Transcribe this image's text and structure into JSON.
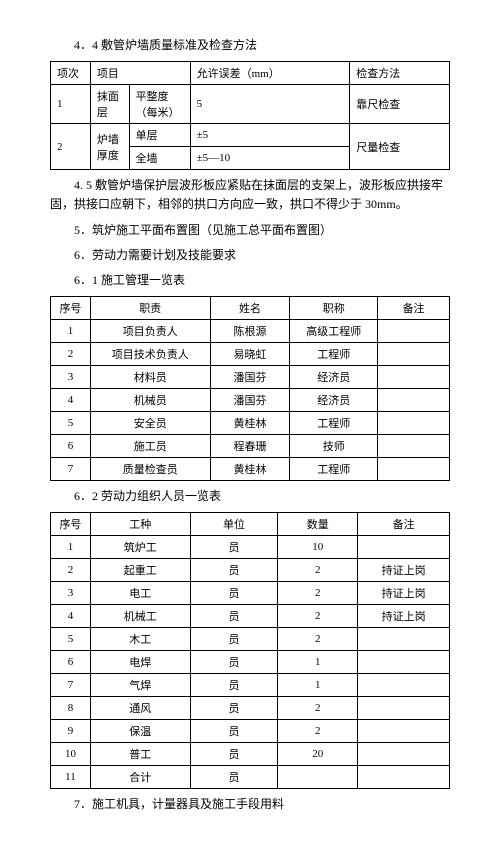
{
  "section": {
    "h44": "4．4 敷管炉墙质量标准及检查方法",
    "table44": {
      "headers": [
        "项次",
        "项目",
        "",
        "允许误差（mm）",
        "检查方法"
      ],
      "rows": [
        [
          "1",
          "抹面层",
          "平整度（每米）",
          "5",
          "靠尺检查"
        ],
        [
          "2",
          "炉墙厚度",
          "单层",
          "±5",
          "尺量检查"
        ],
        [
          "",
          "",
          "全墙",
          "±5—10",
          ""
        ]
      ]
    },
    "p45": "4. 5 敷管炉墙保护层波形板应紧贴在抹面层的支架上，波形板应拱接牢固，拱接口应朝下，相邻的拱口方向应一致，拱口不得少于 30mm。",
    "h5": "5．筑炉施工平面布置图（见施工总平面布置图）",
    "h6": "6．劳动力需要计划及技能要求",
    "h61": "6．1 施工管理一览表",
    "table61": {
      "headers": [
        "序号",
        "职责",
        "姓名",
        "职称",
        "备注"
      ],
      "rows": [
        [
          "1",
          "项目负责人",
          "陈根源",
          "高级工程师",
          ""
        ],
        [
          "2",
          "项目技术负责人",
          "易晓虹",
          "工程师",
          ""
        ],
        [
          "3",
          "材料员",
          "潘国芬",
          "经济员",
          ""
        ],
        [
          "4",
          "机械员",
          "潘国芬",
          "经济员",
          ""
        ],
        [
          "5",
          "安全员",
          "黄桂林",
          "工程师",
          ""
        ],
        [
          "6",
          "施工员",
          "程春珊",
          "技师",
          ""
        ],
        [
          "7",
          "质量检查员",
          "黄桂林",
          "工程师",
          ""
        ]
      ]
    },
    "h62": "6．2 劳动力组织人员一览表",
    "table62": {
      "headers": [
        "序号",
        "工种",
        "单位",
        "数量",
        "备注"
      ],
      "rows": [
        [
          "1",
          "筑炉工",
          "员",
          "10",
          ""
        ],
        [
          "2",
          "起重工",
          "员",
          "2",
          "持证上岗"
        ],
        [
          "3",
          "电工",
          "员",
          "2",
          "持证上岗"
        ],
        [
          "4",
          "机械工",
          "员",
          "2",
          "持证上岗"
        ],
        [
          "5",
          "木工",
          "员",
          "2",
          ""
        ],
        [
          "6",
          "电焊",
          "员",
          "1",
          ""
        ],
        [
          "7",
          "气焊",
          "员",
          "1",
          ""
        ],
        [
          "8",
          "通风",
          "员",
          "2",
          ""
        ],
        [
          "9",
          "保温",
          "员",
          "2",
          ""
        ],
        [
          "10",
          "普工",
          "员",
          "20",
          ""
        ],
        [
          "11",
          "合计",
          "员",
          "",
          ""
        ]
      ]
    },
    "h7": "7．施工机具，计量器具及施工手段用料"
  }
}
